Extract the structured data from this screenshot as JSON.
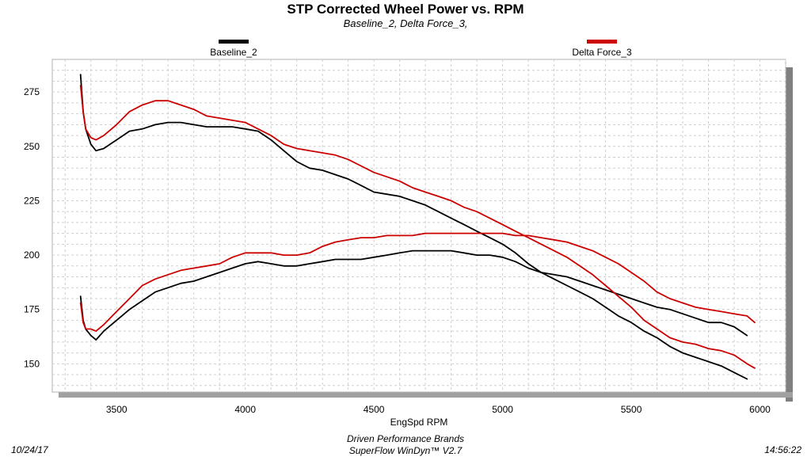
{
  "header": {
    "title": "STP Corrected Wheel Power vs. RPM",
    "subtitle": "Baseline_2, Delta Force_3,"
  },
  "footer": {
    "company": "Driven Performance Brands",
    "software": "SuperFlow WinDyn™ V2.7",
    "date": "10/24/17",
    "time": "14:56:22"
  },
  "colors": {
    "baseline": "#000000",
    "delta": "#cc0000",
    "grid": "#cfcfcf",
    "shadow": "#808080"
  },
  "chart_data": {
    "type": "line",
    "title": "STP Corrected Wheel Power vs. RPM",
    "subtitle": "Baseline_2, Delta Force_3,",
    "xlabel": "EngSpd  RPM",
    "ylabel": "",
    "xlim": [
      3250,
      6100
    ],
    "ylim": [
      137,
      290
    ],
    "xticks": [
      3500,
      4000,
      4500,
      5000,
      5500,
      6000
    ],
    "yticks": [
      150,
      175,
      200,
      225,
      250,
      275
    ],
    "grid": true,
    "legend_position": "top",
    "series": [
      {
        "name": "Baseline_2",
        "color": "#000000",
        "curves": [
          {
            "label": "power",
            "x": [
              3360,
              3370,
              3380,
              3400,
              3420,
              3450,
              3500,
              3550,
              3600,
              3650,
              3700,
              3750,
              3800,
              3850,
              3900,
              3950,
              4000,
              4050,
              4100,
              4150,
              4200,
              4250,
              4300,
              4350,
              4400,
              4450,
              4500,
              4550,
              4600,
              4650,
              4700,
              4750,
              4800,
              4850,
              4900,
              4950,
              5000,
              5050,
              5100,
              5150,
              5200,
              5250,
              5300,
              5350,
              5400,
              5450,
              5500,
              5550,
              5600,
              5650,
              5700,
              5750,
              5800,
              5850,
              5900,
              5950
            ],
            "y": [
              283,
              266,
              258,
              251,
              248,
              249,
              253,
              257,
              258,
              260,
              261,
              261,
              260,
              259,
              259,
              259,
              258,
              257,
              253,
              248,
              243,
              240,
              239,
              237,
              235,
              232,
              229,
              228,
              227,
              225,
              223,
              220,
              217,
              214,
              211,
              208,
              205,
              201,
              196,
              192,
              189,
              186,
              183,
              180,
              176,
              172,
              169,
              165,
              162,
              158,
              155,
              153,
              151,
              149,
              146,
              143
            ]
          },
          {
            "label": "torque",
            "x": [
              3360,
              3370,
              3380,
              3400,
              3420,
              3450,
              3500,
              3550,
              3600,
              3650,
              3700,
              3750,
              3800,
              3850,
              3900,
              3950,
              4000,
              4050,
              4100,
              4150,
              4200,
              4250,
              4300,
              4350,
              4400,
              4450,
              4500,
              4550,
              4600,
              4650,
              4700,
              4750,
              4800,
              4850,
              4900,
              4950,
              5000,
              5050,
              5100,
              5150,
              5200,
              5250,
              5300,
              5350,
              5400,
              5450,
              5500,
              5550,
              5600,
              5650,
              5700,
              5750,
              5800,
              5850,
              5900,
              5950
            ],
            "y": [
              181,
              170,
              166,
              163,
              161,
              165,
              170,
              175,
              179,
              183,
              185,
              187,
              188,
              190,
              192,
              194,
              196,
              197,
              196,
              195,
              195,
              196,
              197,
              198,
              198,
              198,
              199,
              200,
              201,
              202,
              202,
              202,
              202,
              201,
              200,
              200,
              199,
              197,
              194,
              192,
              191,
              190,
              188,
              186,
              184,
              182,
              180,
              178,
              176,
              175,
              173,
              171,
              169,
              169,
              167,
              163
            ]
          }
        ]
      },
      {
        "name": "Delta Force_3",
        "color": "#cc0000",
        "curves": [
          {
            "label": "power",
            "x": [
              3360,
              3370,
              3380,
              3400,
              3420,
              3450,
              3500,
              3550,
              3600,
              3650,
              3700,
              3750,
              3800,
              3850,
              3900,
              3950,
              4000,
              4050,
              4100,
              4150,
              4200,
              4250,
              4300,
              4350,
              4400,
              4450,
              4500,
              4550,
              4600,
              4650,
              4700,
              4750,
              4800,
              4850,
              4900,
              4950,
              5000,
              5050,
              5100,
              5150,
              5200,
              5250,
              5300,
              5350,
              5400,
              5450,
              5500,
              5550,
              5600,
              5650,
              5700,
              5750,
              5800,
              5850,
              5900,
              5950,
              5980
            ],
            "y": [
              278,
              266,
              258,
              254,
              253,
              255,
              260,
              266,
              269,
              271,
              271,
              269,
              267,
              264,
              263,
              262,
              261,
              258,
              255,
              251,
              249,
              248,
              247,
              246,
              244,
              241,
              238,
              236,
              234,
              231,
              229,
              227,
              225,
              222,
              220,
              217,
              214,
              211,
              208,
              205,
              202,
              199,
              195,
              191,
              186,
              181,
              176,
              170,
              166,
              162,
              160,
              159,
              157,
              156,
              154,
              150,
              148
            ]
          },
          {
            "label": "torque",
            "x": [
              3360,
              3370,
              3380,
              3400,
              3420,
              3450,
              3500,
              3550,
              3600,
              3650,
              3700,
              3750,
              3800,
              3850,
              3900,
              3950,
              4000,
              4050,
              4100,
              4150,
              4200,
              4250,
              4300,
              4350,
              4400,
              4450,
              4500,
              4550,
              4600,
              4650,
              4700,
              4750,
              4800,
              4850,
              4900,
              4950,
              5000,
              5050,
              5100,
              5150,
              5200,
              5250,
              5300,
              5350,
              5400,
              5450,
              5500,
              5550,
              5600,
              5650,
              5700,
              5750,
              5800,
              5850,
              5900,
              5950,
              5980
            ],
            "y": [
              178,
              169,
              166,
              166,
              165,
              168,
              174,
              180,
              186,
              189,
              191,
              193,
              194,
              195,
              196,
              199,
              201,
              201,
              201,
              200,
              200,
              201,
              204,
              206,
              207,
              208,
              208,
              209,
              209,
              209,
              210,
              210,
              210,
              210,
              210,
              210,
              210,
              209,
              209,
              208,
              207,
              206,
              204,
              202,
              199,
              196,
              192,
              188,
              183,
              180,
              178,
              176,
              175,
              174,
              173,
              172,
              169
            ]
          }
        ]
      }
    ]
  }
}
